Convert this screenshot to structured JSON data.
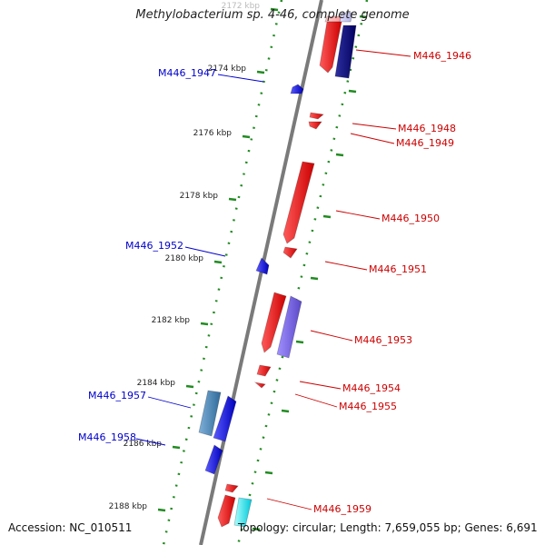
{
  "title": "Methylobacterium sp. 4-46, complete genome",
  "footer": {
    "accession": "Accession: NC_010511",
    "topology": "Topology: circular; Length: 7,659,055 bp; Genes: 6,691"
  },
  "ticks": [
    {
      "label": "2172 kbp",
      "faded": true
    },
    {
      "label": "2174 kbp"
    },
    {
      "label": "2176 kbp"
    },
    {
      "label": "2178 kbp"
    },
    {
      "label": "2180 kbp"
    },
    {
      "label": "2182 kbp"
    },
    {
      "label": "2184 kbp"
    },
    {
      "label": "2186 kbp"
    },
    {
      "label": "2188 kbp"
    }
  ],
  "genes": [
    {
      "id": "M446_1946",
      "strand": "+",
      "color": "#ff0000",
      "label_color": "#cc0000"
    },
    {
      "id": "M446_1947",
      "strand": "-",
      "color": "#0000ff",
      "label_color": "#0000cc"
    },
    {
      "id": "M446_1948",
      "strand": "+",
      "color": "#ff0000",
      "label_color": "#cc0000"
    },
    {
      "id": "M446_1949",
      "strand": "+",
      "color": "#ff0000",
      "label_color": "#cc0000"
    },
    {
      "id": "M446_1950",
      "strand": "+",
      "color": "#ff0000",
      "label_color": "#cc0000"
    },
    {
      "id": "M446_1951",
      "strand": "+",
      "color": "#ff0000",
      "label_color": "#cc0000"
    },
    {
      "id": "M446_1952",
      "strand": "-",
      "color": "#0000ff",
      "label_color": "#0000cc"
    },
    {
      "id": "M446_1953",
      "strand": "+",
      "color": "#ff0000",
      "label_color": "#cc0000"
    },
    {
      "id": "M446_1954",
      "strand": "+",
      "color": "#ff0000",
      "label_color": "#cc0000"
    },
    {
      "id": "M446_1955",
      "strand": "+",
      "color": "#ff0000",
      "label_color": "#cc0000"
    },
    {
      "id": "M446_1957",
      "strand": "-",
      "color": "#0000ff",
      "label_color": "#0000cc"
    },
    {
      "id": "M446_1958",
      "strand": "-",
      "color": "#0000ff",
      "label_color": "#0000cc"
    },
    {
      "id": "M446_1959",
      "strand": "+",
      "color": "#ff0000",
      "label_color": "#cc0000"
    }
  ],
  "colors": {
    "backbone": "#7a7a7a",
    "tick_dots": "#228b22",
    "forward": "#ff0000",
    "reverse": "#0000ff",
    "dark_blue": "#000080",
    "slate_blue": "#7b68ee",
    "steel_blue": "#4682b4",
    "cyan": "#00ffff"
  }
}
